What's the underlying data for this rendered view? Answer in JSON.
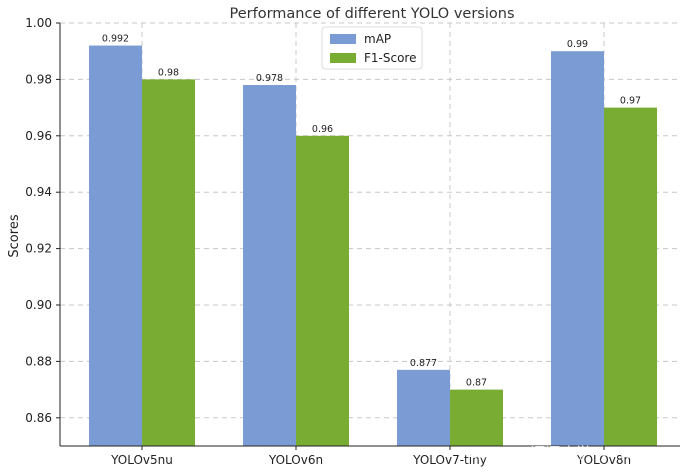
{
  "chart_data": {
    "type": "bar",
    "title": "Performance of different YOLO versions",
    "xlabel": "",
    "ylabel": "Scores",
    "categories": [
      "YOLOv5nu",
      "YOLOv6n",
      "YOLOv7-tiny",
      "YOLOv8n"
    ],
    "series": [
      {
        "name": "mAP",
        "values": [
          0.992,
          0.978,
          0.877,
          0.99
        ],
        "labels": [
          "0.992",
          "0.978",
          "0.877",
          "0.99"
        ],
        "color": "#7b9bd4"
      },
      {
        "name": "F1-Score",
        "values": [
          0.98,
          0.96,
          0.87,
          0.97
        ],
        "labels": [
          "0.98",
          "0.96",
          "0.87",
          "0.97"
        ],
        "color": "#78ac32"
      }
    ],
    "ylim": [
      0.85,
      1.0
    ],
    "yticks": [
      0.86,
      0.88,
      0.9,
      0.92,
      0.94,
      0.96,
      0.98,
      1.0
    ],
    "ytick_labels": [
      "0.86",
      "0.88",
      "0.90",
      "0.92",
      "0.94",
      "0.96",
      "0.98",
      "1.00"
    ],
    "grid": true,
    "legend_position": "top-center"
  },
  "watermark": "CSDN @逗逗班学Python"
}
